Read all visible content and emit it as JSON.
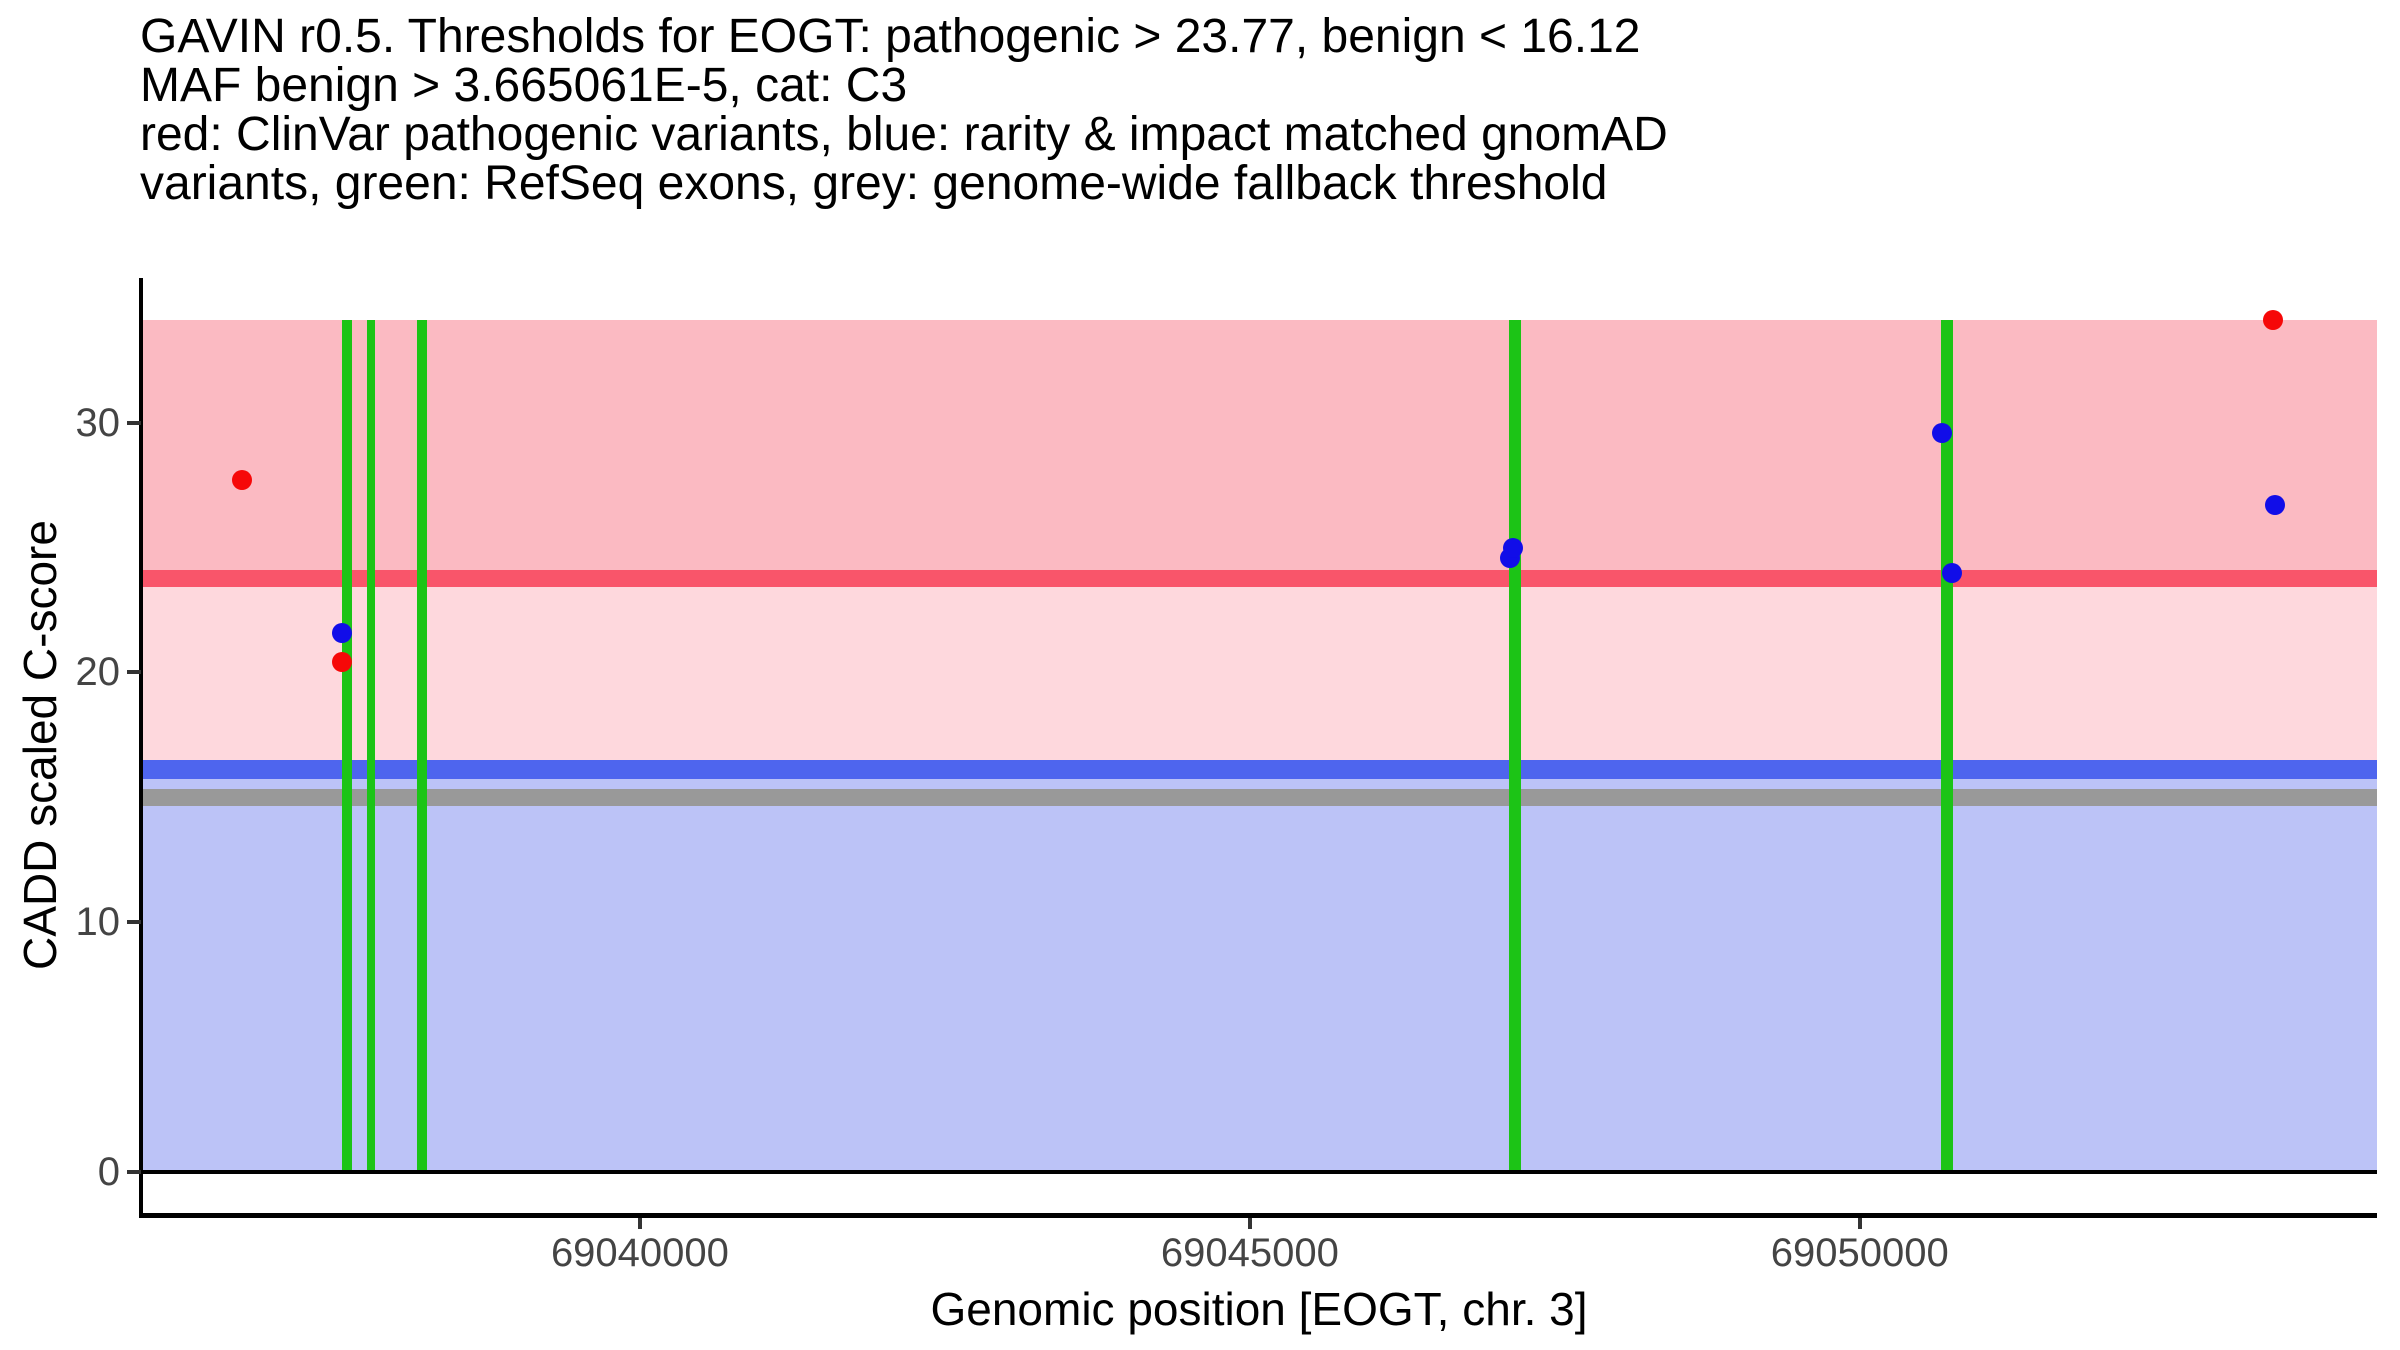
{
  "header": {
    "title_lines": [
      "GAVIN r0.5. Thresholds for EOGT: pathogenic > 23.77, benign < 16.12",
      "MAF benign > 3.665061E-5, cat: C3",
      "red: ClinVar pathogenic variants, blue: rarity & impact matched gnomAD",
      "variants, green: RefSeq exons, grey: genome-wide fallback threshold"
    ]
  },
  "chart_data": {
    "type": "scatter",
    "gene": "EOGT",
    "chromosome": "chr. 3",
    "xlabel": "Genomic position [EOGT, chr. 3]",
    "ylabel": "CADD scaled C-score",
    "xlim": [
      69035910,
      69054240
    ],
    "ylim": [
      -1.65,
      35.8
    ],
    "x_ticks": [
      69040000,
      69045000,
      69050000
    ],
    "y_ticks": [
      0,
      10,
      20,
      30
    ],
    "grid": false,
    "legend": "none (described in title text)",
    "thresholds": {
      "pathogenic_gt": 23.77,
      "benign_lt": 16.12,
      "genome_wide_fallback": 15.0,
      "maf_benign_gt": "3.665061E-5",
      "category": "C3"
    },
    "bands": [
      {
        "name": "pathogenic-zone",
        "from": 23.77,
        "to": 34.1,
        "color": "#fbbac2"
      },
      {
        "name": "vous-zone",
        "from": 16.12,
        "to": 23.77,
        "color": "#fed8dd"
      },
      {
        "name": "benign-zone",
        "from": 0,
        "to": 16.12,
        "color": "#bcc3f7"
      }
    ],
    "hlines": [
      {
        "name": "pathogenic-threshold",
        "y": 23.77,
        "color": "#f9556a",
        "thickness_px": 17
      },
      {
        "name": "benign-threshold",
        "y": 16.12,
        "color": "#4e65ee",
        "thickness_px": 19
      },
      {
        "name": "genome-wide-fallback-threshold",
        "y": 15.0,
        "color": "#999999",
        "thickness_px": 17
      },
      {
        "name": "baseline",
        "y": 0,
        "color": "#000000",
        "thickness_px": 4
      }
    ],
    "exons": [
      {
        "start": 69037560,
        "end": 69037640
      },
      {
        "start": 69037765,
        "end": 69037830
      },
      {
        "start": 69038175,
        "end": 69038255
      },
      {
        "start": 69047125,
        "end": 69047220
      },
      {
        "start": 69050665,
        "end": 69050765
      }
    ],
    "exon_color": "#1cc416",
    "series": [
      {
        "name": "ClinVar pathogenic variants",
        "color": "#f60808",
        "points": [
          [
            69036740,
            27.7
          ],
          [
            69037560,
            20.4
          ],
          [
            69053390,
            34.1
          ]
        ]
      },
      {
        "name": "rarity & impact matched gnomAD variants",
        "color": "#110de8",
        "points": [
          [
            69037560,
            21.6
          ],
          [
            69047130,
            24.6
          ],
          [
            69047160,
            25.0
          ],
          [
            69050670,
            29.6
          ],
          [
            69050760,
            24.0
          ],
          [
            69053400,
            26.7
          ]
        ]
      }
    ]
  }
}
